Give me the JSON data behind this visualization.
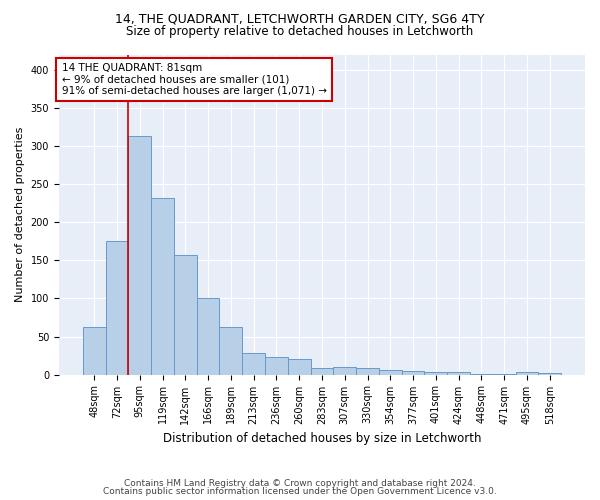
{
  "title1": "14, THE QUADRANT, LETCHWORTH GARDEN CITY, SG6 4TY",
  "title2": "Size of property relative to detached houses in Letchworth",
  "xlabel": "Distribution of detached houses by size in Letchworth",
  "ylabel": "Number of detached properties",
  "categories": [
    "48sqm",
    "72sqm",
    "95sqm",
    "119sqm",
    "142sqm",
    "166sqm",
    "189sqm",
    "213sqm",
    "236sqm",
    "260sqm",
    "283sqm",
    "307sqm",
    "330sqm",
    "354sqm",
    "377sqm",
    "401sqm",
    "424sqm",
    "448sqm",
    "471sqm",
    "495sqm",
    "518sqm"
  ],
  "values": [
    62,
    175,
    313,
    232,
    157,
    101,
    62,
    28,
    23,
    20,
    9,
    10,
    8,
    6,
    5,
    3,
    3,
    1,
    1,
    3,
    2
  ],
  "bar_color": "#b8cfe8",
  "bar_edge_color": "#6699cc",
  "background_color": "#e8eef8",
  "annotation_text": "14 THE QUADRANT: 81sqm\n← 9% of detached houses are smaller (101)\n91% of semi-detached houses are larger (1,071) →",
  "vline_x": 1.5,
  "vline_color": "#cc0000",
  "annotation_box_color": "#ffffff",
  "annotation_box_edge": "#cc0000",
  "footer1": "Contains HM Land Registry data © Crown copyright and database right 2024.",
  "footer2": "Contains public sector information licensed under the Open Government Licence v3.0.",
  "ylim": [
    0,
    420
  ],
  "yticks": [
    0,
    50,
    100,
    150,
    200,
    250,
    300,
    350,
    400
  ],
  "fig_bg": "#ffffff",
  "title1_fontsize": 9,
  "title2_fontsize": 8.5,
  "ylabel_fontsize": 8,
  "xlabel_fontsize": 8.5,
  "tick_fontsize": 7,
  "annot_fontsize": 7.5,
  "footer_fontsize": 6.5
}
